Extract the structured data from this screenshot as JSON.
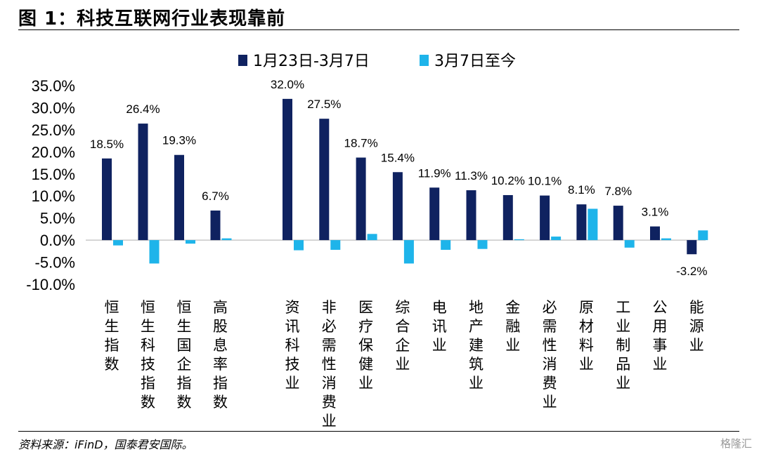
{
  "header": {
    "title": "图 1：科技互联网行业表现靠前"
  },
  "footer": {
    "source": "资料来源：iFinD，国泰君安国际。",
    "watermark": "格隆汇"
  },
  "colors": {
    "series1": "#0f2260",
    "series2": "#1eb4ea"
  },
  "chart_data": {
    "type": "bar",
    "title": "",
    "xlabel": "",
    "ylabel": "",
    "ylim": [
      -10,
      35
    ],
    "yticks": [
      "35.0%",
      "30.0%",
      "25.0%",
      "20.0%",
      "15.0%",
      "10.0%",
      "5.0%",
      "0.0%",
      "-5.0%",
      "-10.0%"
    ],
    "legend_position": "top",
    "grid": false,
    "categories": [
      "恒生指数",
      "恒生科技指数",
      "恒生国企指数",
      "高股息率指数",
      "资讯科技业",
      "非必需性消费业",
      "医疗保健业",
      "综合企业",
      "电讯业",
      "地产建筑业",
      "金融业",
      "必需性消费业",
      "原材料业",
      "工业制品业",
      "公用事业",
      "能源业"
    ],
    "series": [
      {
        "name": "1月23日-3月7日",
        "values": [
          18.5,
          26.4,
          19.3,
          6.7,
          32.0,
          27.5,
          18.7,
          15.4,
          11.9,
          11.3,
          10.2,
          10.1,
          8.1,
          7.8,
          3.1,
          -3.2
        ],
        "labels": [
          "18.5%",
          "26.4%",
          "19.3%",
          "6.7%",
          "32.0%",
          "27.5%",
          "18.7%",
          "15.4%",
          "11.9%",
          "11.3%",
          "10.2%",
          "10.1%",
          "8.1%",
          "7.8%",
          "3.1%",
          "-3.2%"
        ]
      },
      {
        "name": "3月7日至今",
        "values": [
          -1.2,
          -5.3,
          -0.8,
          0.4,
          -2.3,
          -2.2,
          1.4,
          -5.3,
          -2.2,
          -2.0,
          0.2,
          0.8,
          7.1,
          -1.7,
          0.4,
          2.2
        ]
      }
    ]
  }
}
